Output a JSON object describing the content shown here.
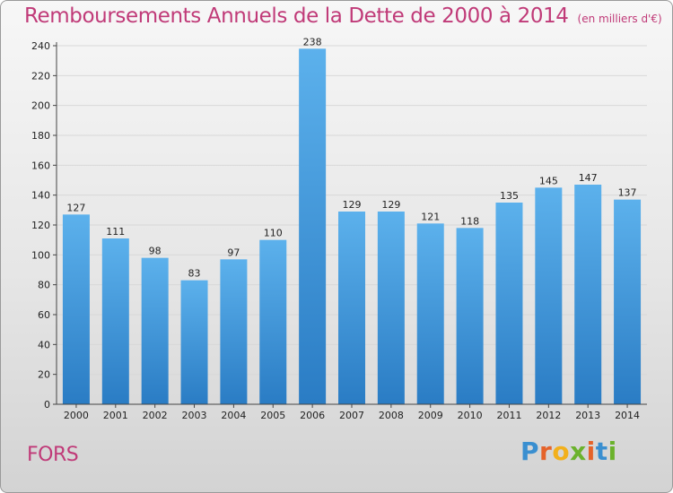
{
  "chart_data": {
    "type": "bar",
    "title": "Remboursements Annuels de la Dette de 2000 à 2014",
    "subtitle": "(en milliers d'€)",
    "categories": [
      "2000",
      "2001",
      "2002",
      "2003",
      "2004",
      "2005",
      "2006",
      "2007",
      "2008",
      "2009",
      "2010",
      "2011",
      "2012",
      "2013",
      "2014"
    ],
    "values": [
      127,
      111,
      98,
      83,
      97,
      110,
      238,
      129,
      129,
      121,
      118,
      135,
      145,
      147,
      137
    ],
    "data_labels": [
      "127",
      "111",
      "98",
      "83",
      "97",
      "110",
      "238",
      "129",
      "129",
      "121",
      "118",
      "135",
      "145",
      "147",
      "137"
    ],
    "ylim": [
      0,
      240
    ],
    "yticks": [
      0,
      20,
      40,
      60,
      80,
      100,
      120,
      140,
      160,
      180,
      200,
      220,
      240
    ],
    "ytick_labels": [
      "0",
      "20",
      "40",
      "60",
      "80",
      "100",
      "120",
      "140",
      "160",
      "180",
      "200",
      "220",
      "240"
    ],
    "grid": true,
    "xlabel": "",
    "ylabel": "",
    "bar_color": "#4fa3e0"
  },
  "commune": "FORS",
  "brand": {
    "letters": [
      "P",
      "r",
      "o",
      "x",
      "i",
      "t",
      "i"
    ],
    "colors": [
      "#3a8fd0",
      "#e5632a",
      "#f2b01c",
      "#6bb22c",
      "#e5632a",
      "#3a8fd0",
      "#6bb22c"
    ]
  },
  "colors": {
    "title": "#c03a78",
    "axis_text": "#222222",
    "grid": "#d8d8d8"
  }
}
